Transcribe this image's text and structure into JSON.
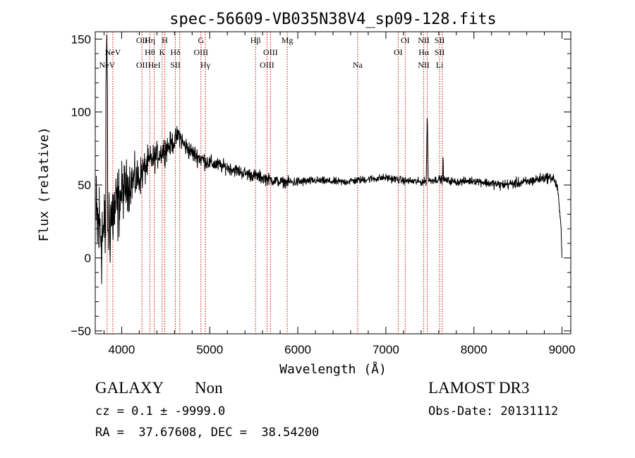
{
  "chart_data": {
    "type": "line",
    "title": "spec-56609-VB035N38V4_sp09-128.fits",
    "xlabel": "Wavelength (Å)",
    "ylabel": "Flux (relative)",
    "xlim": [
      3700,
      9100
    ],
    "ylim": [
      -52,
      155
    ],
    "xticks": [
      4000,
      5000,
      6000,
      7000,
      8000,
      9000
    ],
    "xtick_labels": [
      "4000",
      "5000",
      "6000",
      "7000",
      "8000",
      "9000"
    ],
    "yticks": [
      -50,
      0,
      50,
      100,
      150
    ],
    "ytick_labels": [
      "−50",
      "0",
      "50",
      "100",
      "150"
    ],
    "line_color": "#000000",
    "marker_color": "#cc0000",
    "spectrum_anchors": {
      "x": [
        3710,
        3760,
        3800,
        3850,
        3900,
        3950,
        4000,
        4100,
        4200,
        4300,
        4400,
        4500,
        4600,
        4650,
        4700,
        4800,
        4900,
        5000,
        5200,
        5400,
        5600,
        5800,
        6000,
        6200,
        6500,
        6800,
        7000,
        7200,
        7400,
        7600,
        7800,
        8000,
        8300,
        8600,
        8800,
        8900,
        8950,
        8990,
        9000
      ],
      "y": [
        22,
        20,
        15,
        25,
        30,
        35,
        45,
        52,
        55,
        65,
        70,
        75,
        80,
        85,
        78,
        72,
        68,
        65,
        62,
        58,
        55,
        52,
        52,
        53,
        52,
        54,
        55,
        53,
        52,
        54,
        52,
        53,
        50,
        52,
        55,
        55,
        48,
        20,
        0
      ],
      "noise": [
        45,
        45,
        40,
        40,
        35,
        30,
        22,
        18,
        15,
        12,
        10,
        10,
        8,
        8,
        8,
        7,
        7,
        6,
        5,
        5,
        5,
        4,
        4,
        3,
        3,
        3,
        3,
        3,
        3,
        3,
        3,
        3,
        4,
        4,
        4,
        4,
        4,
        2,
        0
      ]
    },
    "emission_peaks": [
      {
        "x": 3830,
        "y": 153
      },
      {
        "x": 7470,
        "y": 100
      },
      {
        "x": 7650,
        "y": 73
      }
    ],
    "line_markers": [
      {
        "x": 3835,
        "labels": [
          "",
          "",
          "NeV"
        ]
      },
      {
        "x": 3900,
        "labels": [
          "",
          "NeV",
          ""
        ]
      },
      {
        "x": 4230,
        "labels": [
          "OII",
          "",
          "OII"
        ]
      },
      {
        "x": 4320,
        "labels": [
          "Hη",
          "Hθ",
          ""
        ]
      },
      {
        "x": 4370,
        "labels": [
          "",
          "",
          "HeI"
        ]
      },
      {
        "x": 4460,
        "labels": [
          "",
          "K",
          ""
        ]
      },
      {
        "x": 4490,
        "labels": [
          "H",
          "",
          ""
        ]
      },
      {
        "x": 4610,
        "labels": [
          "",
          "Hδ",
          "SII"
        ]
      },
      {
        "x": 4660,
        "labels": [
          "",
          "",
          ""
        ]
      },
      {
        "x": 4900,
        "labels": [
          "G",
          "OIII",
          ""
        ]
      },
      {
        "x": 4950,
        "labels": [
          "",
          "",
          "Hγ"
        ]
      },
      {
        "x": 5520,
        "labels": [
          "Hβ",
          "",
          ""
        ]
      },
      {
        "x": 5650,
        "labels": [
          "",
          "",
          "OIII"
        ]
      },
      {
        "x": 5690,
        "labels": [
          "",
          "OIII",
          ""
        ]
      },
      {
        "x": 5880,
        "labels": [
          "Mg",
          "",
          ""
        ]
      },
      {
        "x": 6680,
        "labels": [
          "",
          "",
          "Na"
        ]
      },
      {
        "x": 7140,
        "labels": [
          "",
          "OI",
          ""
        ]
      },
      {
        "x": 7220,
        "labels": [
          "OI",
          "",
          ""
        ]
      },
      {
        "x": 7430,
        "labels": [
          "NII",
          "Hα",
          "NII"
        ]
      },
      {
        "x": 7470,
        "labels": [
          "",
          "",
          ""
        ]
      },
      {
        "x": 7610,
        "labels": [
          "SII",
          "SII",
          "Li"
        ]
      },
      {
        "x": 7640,
        "labels": [
          "",
          "",
          ""
        ]
      }
    ]
  },
  "info": {
    "class": "GALAXY",
    "subclass": "Non",
    "survey": "LAMOST DR3",
    "redshift": "cz = 0.1 ± -9999.0",
    "obs_date": "Obs-Date: 20131112",
    "coords": "RA =  37.67608, DEC =  38.54200"
  }
}
